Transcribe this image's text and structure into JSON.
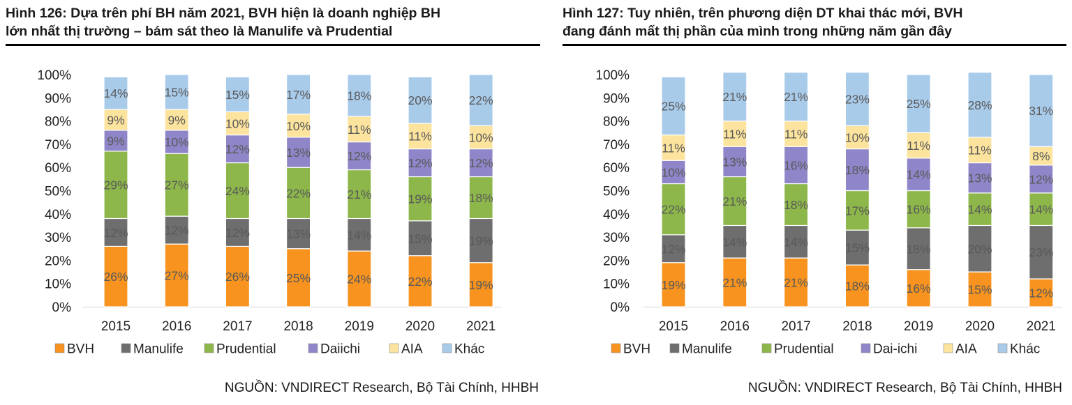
{
  "figures": [
    {
      "title_line1": "Hình 126: Dựa trên phí BH năm 2021, BVH hiện là doanh nghiệp BH",
      "title_line2": "lớn nhất thị trường – bám sát theo là Manulife và Prudential",
      "source": "NGUỒN: VNDIRECT Research, Bộ Tài Chính, HHBH"
    },
    {
      "title_line1": "Hình 127: Tuy nhiên, trên phương diện DT khai thác mới, BVH",
      "title_line2": "đang đánh mất thị phần của mình trong những năm gần đây",
      "source": "NGUỒN: VNDIRECT Research, Bộ Tài Chính, HHBH"
    }
  ],
  "chart_data": [
    {
      "type": "bar",
      "stacked": true,
      "title": "Hình 126: Dựa trên phí BH năm 2021, BVH hiện là doanh nghiệp BH lớn nhất thị trường – bám sát theo là Manulife và Prudential",
      "categories": [
        "2015",
        "2016",
        "2017",
        "2018",
        "2019",
        "2020",
        "2021"
      ],
      "y_ticks": [
        "0%",
        "10%",
        "20%",
        "30%",
        "40%",
        "50%",
        "60%",
        "70%",
        "80%",
        "90%",
        "100%"
      ],
      "ylim": [
        0,
        100
      ],
      "legend_position": "bottom",
      "series": [
        {
          "name": "BVH",
          "color": "#F7931E",
          "values": [
            26,
            27,
            26,
            25,
            24,
            22,
            19
          ]
        },
        {
          "name": "Manulife",
          "color": "#6E6E6E",
          "values": [
            12,
            12,
            12,
            13,
            14,
            15,
            19
          ]
        },
        {
          "name": "Prudential",
          "color": "#8DB74A",
          "values": [
            29,
            27,
            24,
            22,
            21,
            19,
            18
          ]
        },
        {
          "name": "Daiichi",
          "color": "#8E86C8",
          "values": [
            9,
            10,
            12,
            13,
            12,
            12,
            12
          ]
        },
        {
          "name": "AIA",
          "color": "#FCE49E",
          "values": [
            9,
            9,
            10,
            10,
            11,
            11,
            10
          ]
        },
        {
          "name": "Khác",
          "color": "#A9CBEA",
          "values": [
            14,
            15,
            15,
            17,
            18,
            20,
            22
          ]
        }
      ]
    },
    {
      "type": "bar",
      "stacked": true,
      "title": "Hình 127: Tuy nhiên, trên phương diện DT khai thác mới, BVH đang đánh mất thị phần của mình trong những năm gần đây",
      "categories": [
        "2015",
        "2016",
        "2017",
        "2018",
        "2019",
        "2020",
        "2021"
      ],
      "y_ticks": [
        "0%",
        "10%",
        "20%",
        "30%",
        "40%",
        "50%",
        "60%",
        "70%",
        "80%",
        "90%",
        "100%"
      ],
      "ylim": [
        0,
        100
      ],
      "legend_position": "bottom",
      "series": [
        {
          "name": "BVH",
          "color": "#F7931E",
          "values": [
            19,
            21,
            21,
            18,
            16,
            15,
            12
          ]
        },
        {
          "name": "Manulife",
          "color": "#6E6E6E",
          "values": [
            12,
            14,
            14,
            15,
            18,
            20,
            23
          ]
        },
        {
          "name": "Prudential",
          "color": "#8DB74A",
          "values": [
            22,
            21,
            18,
            17,
            16,
            14,
            14
          ]
        },
        {
          "name": "Dai-ichi",
          "color": "#8E86C8",
          "values": [
            10,
            13,
            16,
            18,
            14,
            13,
            12
          ]
        },
        {
          "name": "AIA",
          "color": "#FCE49E",
          "values": [
            11,
            11,
            11,
            10,
            11,
            11,
            8
          ]
        },
        {
          "name": "Khác",
          "color": "#A9CBEA",
          "values": [
            25,
            21,
            21,
            23,
            25,
            28,
            31
          ]
        }
      ]
    }
  ]
}
